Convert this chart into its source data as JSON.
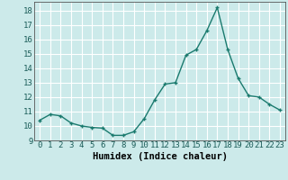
{
  "x": [
    0,
    1,
    2,
    3,
    4,
    5,
    6,
    7,
    8,
    9,
    10,
    11,
    12,
    13,
    14,
    15,
    16,
    17,
    18,
    19,
    20,
    21,
    22,
    23
  ],
  "y": [
    10.4,
    10.8,
    10.7,
    10.2,
    10.0,
    9.9,
    9.85,
    9.35,
    9.35,
    9.6,
    10.5,
    11.8,
    12.9,
    13.0,
    14.9,
    15.3,
    16.6,
    18.2,
    15.3,
    13.3,
    12.1,
    12.0,
    11.5,
    11.1
  ],
  "line_color": "#1a7a6e",
  "marker": "+",
  "marker_size": 3,
  "marker_lw": 1.0,
  "line_width": 1.0,
  "bg_color": "#cceaea",
  "grid_color": "#ffffff",
  "xlabel": "Humidex (Indice chaleur)",
  "xlim": [
    -0.5,
    23.5
  ],
  "ylim": [
    9,
    18.6
  ],
  "yticks": [
    9,
    10,
    11,
    12,
    13,
    14,
    15,
    16,
    17,
    18
  ],
  "xticks": [
    0,
    1,
    2,
    3,
    4,
    5,
    6,
    7,
    8,
    9,
    10,
    11,
    12,
    13,
    14,
    15,
    16,
    17,
    18,
    19,
    20,
    21,
    22,
    23
  ],
  "xlabel_fontsize": 7.5,
  "tick_fontsize": 6.5,
  "spine_color": "#555555"
}
